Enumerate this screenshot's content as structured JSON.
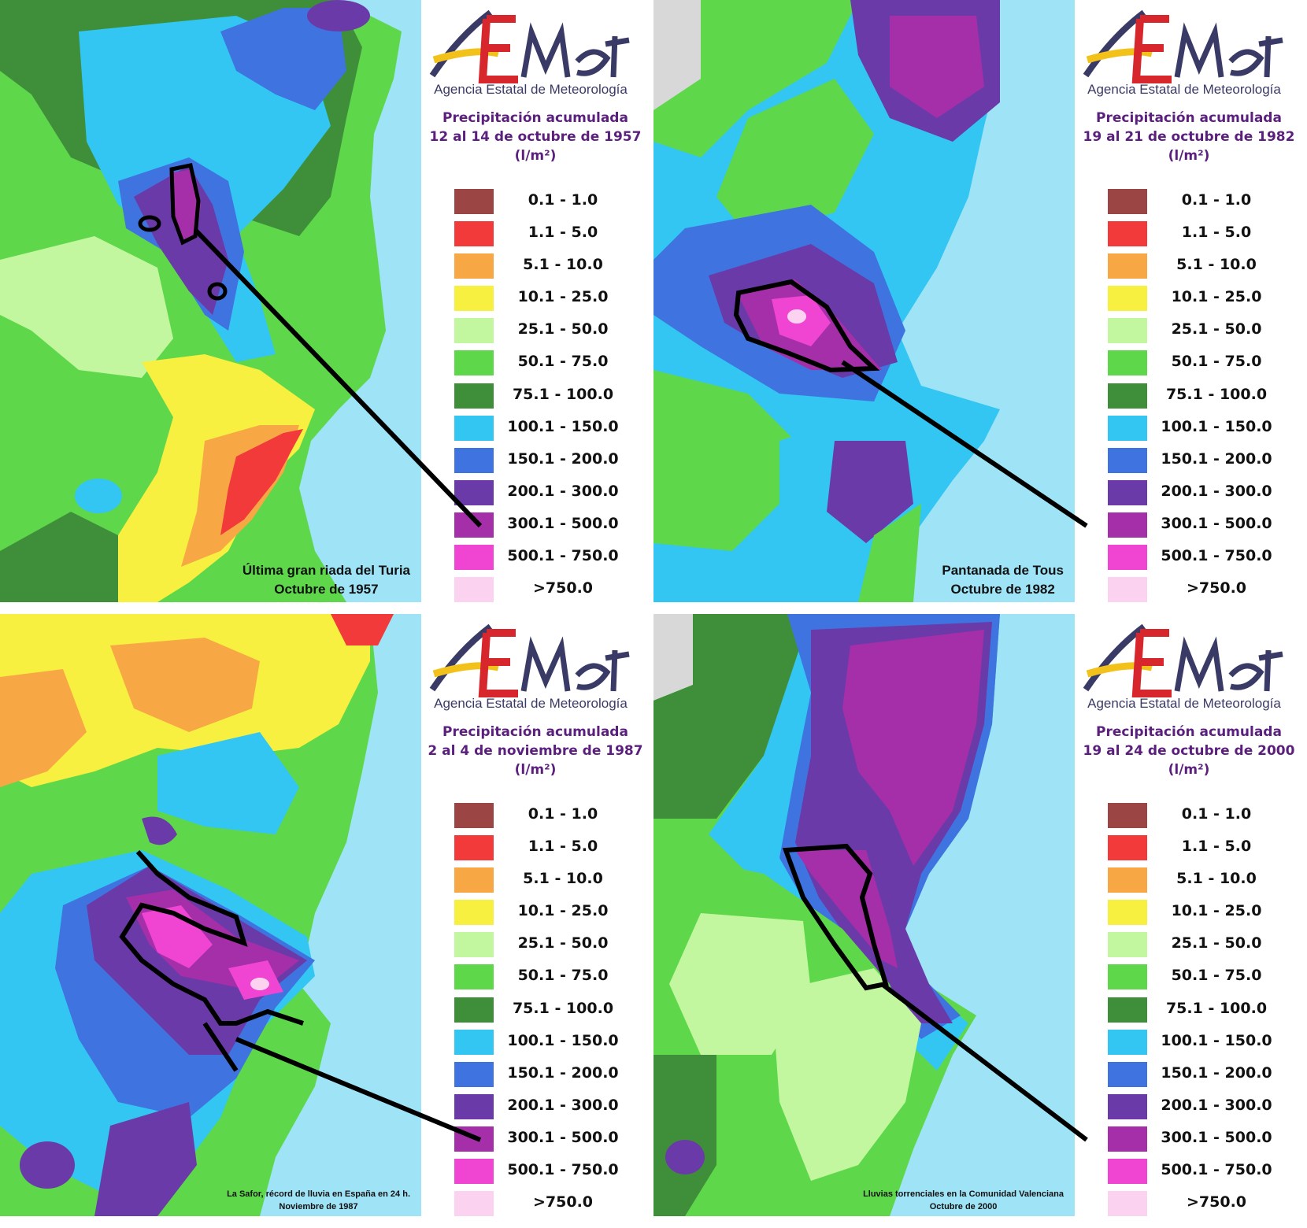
{
  "organization": {
    "logo_text": "AEmet",
    "name": "Agencia Estatal de Meteorología"
  },
  "legend": {
    "unit_label": "(l/m²)",
    "classes": [
      {
        "label": "0.1 - 1.0",
        "color": "#9c4545"
      },
      {
        "label": "1.1 - 5.0",
        "color": "#f23a3a"
      },
      {
        "label": "5.1 - 10.0",
        "color": "#f7a845"
      },
      {
        "label": "10.1 - 25.0",
        "color": "#f7f040"
      },
      {
        "label": "25.1 - 50.0",
        "color": "#c2f7a0"
      },
      {
        "label": "50.1 - 75.0",
        "color": "#5ed84a"
      },
      {
        "label": "75.1 - 100.0",
        "color": "#3f8f3a"
      },
      {
        "label": "100.1 - 150.0",
        "color": "#33c6f2"
      },
      {
        "label": "150.1 - 200.0",
        "color": "#3f74e0"
      },
      {
        "label": "200.1 - 300.0",
        "color": "#6a3aa8"
      },
      {
        "label": ">750.0",
        "color": "#fbd3f0"
      }
    ],
    "highlight_classes": [
      {
        "label": "300.1 - 500.0",
        "color": "#a52fa8"
      },
      {
        "label": "500.1 - 750.0",
        "color": "#f044d2"
      }
    ]
  },
  "panels": [
    {
      "title_line1": "Precipitación acumulada",
      "title_line2": "12 al 14 de octubre de 1957",
      "caption_line1": "Última gran riada del Turia",
      "caption_line2": "Octubre de 1957"
    },
    {
      "title_line1": "Precipitación acumulada",
      "title_line2": "19 al 21 de octubre de 1982",
      "caption_line1": "Pantanada de Tous",
      "caption_line2": "Octubre de 1982"
    },
    {
      "title_line1": "Precipitación acumulada",
      "title_line2": "2 al 4 de noviembre de 1987",
      "caption_line1": "La Safor, récord de lluvia en España en 24 h.",
      "caption_line2": "Noviembre de 1987"
    },
    {
      "title_line1": "Precipitación acumulada",
      "title_line2": "19 al 24 de octubre de 2000",
      "caption_line1": "Lluvias torrenciales en la Comunidad Valenciana",
      "caption_line2": "Octubre de 2000"
    }
  ]
}
